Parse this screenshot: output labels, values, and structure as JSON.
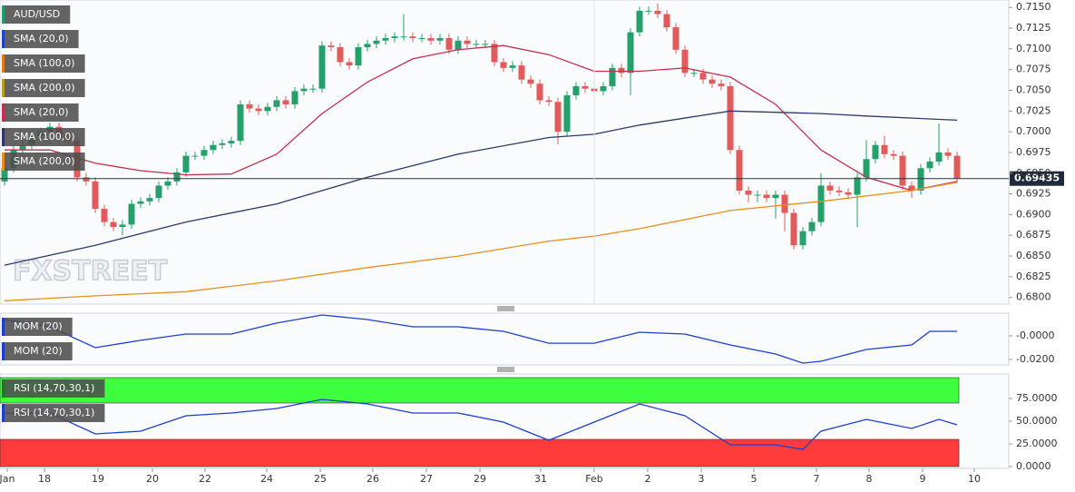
{
  "chart_data": [
    {
      "type": "candlestick",
      "title": "AUD/USD",
      "xlim": [
        -0.5,
        110.7
      ],
      "ylim": [
        0.6792,
        0.7159
      ],
      "yticks": [
        {
          "value": 0.68,
          "label": "0.6800"
        },
        {
          "value": 0.6825,
          "label": "0.6825"
        },
        {
          "value": 0.685,
          "label": "0.6850"
        },
        {
          "value": 0.6875,
          "label": "0.6875"
        },
        {
          "value": 0.69,
          "label": "0.6900"
        },
        {
          "value": 0.6925,
          "label": "0.6925"
        },
        {
          "value": 0.695,
          "label": "0.6950"
        },
        {
          "value": 0.6975,
          "label": "0.6975"
        },
        {
          "value": 0.7,
          "label": "0.7000"
        },
        {
          "value": 0.7025,
          "label": "0.7025"
        },
        {
          "value": 0.705,
          "label": "0.7050"
        },
        {
          "value": 0.7075,
          "label": "0.7075"
        },
        {
          "value": 0.71,
          "label": "0.7100"
        },
        {
          "value": 0.7125,
          "label": "0.7125"
        },
        {
          "value": 0.715,
          "label": "0.7150"
        }
      ],
      "last_price": 0.69435,
      "watermark": "FXSTREET",
      "up_color": "#26a06b",
      "down_color": "#e05b5b",
      "legend": [
        {
          "text": "AUD/USD",
          "color": "#26a06b"
        },
        {
          "text": "SMA (20,0)",
          "color": "#2244cc"
        },
        {
          "text": "SMA (100,0)",
          "color": "#e07b1c"
        },
        {
          "text": "SMA (200,0)",
          "color": "#b8a21c"
        },
        {
          "text": "SMA (20,0)",
          "color": "#c2304f"
        },
        {
          "text": "SMA (100,0)",
          "color": "#2b3a6b"
        },
        {
          "text": "SMA (200,0)",
          "color": "#e8901c"
        }
      ],
      "open": [
        0.694,
        0.6956,
        0.6978,
        0.6984,
        0.6995,
        0.7,
        0.7006,
        0.6995,
        0.6989,
        0.6945,
        0.694,
        0.6907,
        0.6891,
        0.6885,
        0.6888,
        0.6913,
        0.6916,
        0.692,
        0.6935,
        0.694,
        0.6951,
        0.6971,
        0.6971,
        0.6978,
        0.6984,
        0.6986,
        0.6989,
        0.7033,
        0.7028,
        0.7025,
        0.703,
        0.7038,
        0.7033,
        0.7049,
        0.7052,
        0.7052,
        0.7104,
        0.7102,
        0.7084,
        0.708,
        0.7102,
        0.7106,
        0.711,
        0.7113,
        0.7115,
        0.7115,
        0.7113,
        0.7113,
        0.711,
        0.7113,
        0.7099,
        0.711,
        0.7106,
        0.7106,
        0.7106,
        0.7084,
        0.7077,
        0.708,
        0.7063,
        0.7058,
        0.7038,
        0.7036,
        0.7,
        0.7044,
        0.7055,
        0.7052,
        0.7049,
        0.7055,
        0.7077,
        0.7071,
        0.712,
        0.7146,
        0.7146,
        0.7142,
        0.7126,
        0.7099,
        0.7071,
        0.7071,
        0.7063,
        0.7058,
        0.7055,
        0.6978,
        0.6929,
        0.6924,
        0.6924,
        0.692,
        0.6924,
        0.6902,
        0.6863,
        0.688,
        0.6891,
        0.6935,
        0.6929,
        0.6927,
        0.6924,
        0.6945,
        0.6967,
        0.6984,
        0.6973,
        0.6971,
        0.6935,
        0.6929,
        0.6956,
        0.6964,
        0.6975,
        0.6971
      ],
      "high": [
        0.6961,
        0.6983,
        0.6989,
        0.7,
        0.7005,
        0.7011,
        0.7011,
        0.7,
        0.6994,
        0.695,
        0.6945,
        0.6912,
        0.6896,
        0.6893,
        0.6918,
        0.6921,
        0.6925,
        0.694,
        0.6945,
        0.6956,
        0.6976,
        0.6976,
        0.6983,
        0.6989,
        0.6991,
        0.6994,
        0.7038,
        0.7038,
        0.7033,
        0.7035,
        0.7043,
        0.7043,
        0.7054,
        0.7057,
        0.7057,
        0.7109,
        0.7109,
        0.7107,
        0.7089,
        0.7107,
        0.7111,
        0.7115,
        0.7118,
        0.712,
        0.7142,
        0.712,
        0.7118,
        0.7118,
        0.7118,
        0.7118,
        0.7115,
        0.7115,
        0.7111,
        0.7111,
        0.7111,
        0.7089,
        0.7085,
        0.7085,
        0.7068,
        0.7063,
        0.7043,
        0.7041,
        0.7049,
        0.706,
        0.706,
        0.7057,
        0.706,
        0.7082,
        0.7082,
        0.7125,
        0.7151,
        0.7151,
        0.7155,
        0.7147,
        0.7131,
        0.7104,
        0.7076,
        0.7076,
        0.7068,
        0.7063,
        0.706,
        0.6983,
        0.6934,
        0.6929,
        0.6929,
        0.6929,
        0.6929,
        0.6907,
        0.6885,
        0.6896,
        0.695,
        0.694,
        0.6934,
        0.6932,
        0.695,
        0.699,
        0.6989,
        0.6995,
        0.6978,
        0.6976,
        0.694,
        0.6961,
        0.6969,
        0.701,
        0.698,
        0.6976
      ],
      "low": [
        0.6935,
        0.6951,
        0.6973,
        0.6979,
        0.699,
        0.6995,
        0.699,
        0.6984,
        0.694,
        0.6935,
        0.6902,
        0.6886,
        0.688,
        0.6875,
        0.6883,
        0.6908,
        0.6911,
        0.6915,
        0.693,
        0.6935,
        0.6946,
        0.6966,
        0.6966,
        0.6973,
        0.6979,
        0.6981,
        0.6984,
        0.7023,
        0.702,
        0.702,
        0.7025,
        0.7028,
        0.7028,
        0.7044,
        0.7047,
        0.7047,
        0.7097,
        0.7079,
        0.7075,
        0.7075,
        0.7097,
        0.7101,
        0.7105,
        0.7108,
        0.711,
        0.7108,
        0.7108,
        0.7105,
        0.7105,
        0.7094,
        0.7094,
        0.7101,
        0.7101,
        0.7101,
        0.7079,
        0.7072,
        0.7072,
        0.7058,
        0.7053,
        0.7033,
        0.7031,
        0.6985,
        0.6995,
        0.7039,
        0.7047,
        0.7044,
        0.7044,
        0.705,
        0.7066,
        0.7044,
        0.7115,
        0.7141,
        0.7137,
        0.7121,
        0.7094,
        0.7066,
        0.7066,
        0.7058,
        0.7053,
        0.705,
        0.6973,
        0.6924,
        0.6915,
        0.6915,
        0.6915,
        0.6895,
        0.688,
        0.6858,
        0.6858,
        0.6875,
        0.6886,
        0.6924,
        0.6922,
        0.6919,
        0.6885,
        0.694,
        0.6962,
        0.6968,
        0.6966,
        0.693,
        0.692,
        0.6924,
        0.6951,
        0.6959,
        0.6966,
        0.6938
      ],
      "close": [
        0.6956,
        0.6978,
        0.6984,
        0.6995,
        0.7,
        0.7006,
        0.6995,
        0.6989,
        0.6945,
        0.694,
        0.6907,
        0.6891,
        0.6885,
        0.6888,
        0.6913,
        0.6916,
        0.692,
        0.6935,
        0.694,
        0.6951,
        0.6971,
        0.6971,
        0.6978,
        0.6984,
        0.6986,
        0.6989,
        0.7033,
        0.7028,
        0.7025,
        0.703,
        0.7038,
        0.7033,
        0.7049,
        0.7052,
        0.7052,
        0.7104,
        0.7102,
        0.7084,
        0.708,
        0.7102,
        0.7106,
        0.711,
        0.7113,
        0.7115,
        0.7115,
        0.7113,
        0.7113,
        0.711,
        0.7113,
        0.7099,
        0.711,
        0.7106,
        0.7106,
        0.7106,
        0.7084,
        0.7077,
        0.708,
        0.7063,
        0.7058,
        0.7038,
        0.7036,
        0.7,
        0.7044,
        0.7055,
        0.7052,
        0.7049,
        0.7055,
        0.7077,
        0.7071,
        0.712,
        0.7146,
        0.7146,
        0.7142,
        0.7126,
        0.7099,
        0.7071,
        0.7071,
        0.7063,
        0.7058,
        0.7055,
        0.6978,
        0.6929,
        0.6924,
        0.6924,
        0.692,
        0.6924,
        0.6902,
        0.6863,
        0.688,
        0.6891,
        0.6935,
        0.6929,
        0.6927,
        0.6924,
        0.6945,
        0.6967,
        0.6984,
        0.6973,
        0.6971,
        0.6935,
        0.6929,
        0.6956,
        0.6964,
        0.6975,
        0.6971,
        0.69435
      ],
      "series": [
        {
          "color": "#c2304f",
          "x": [
            0,
            5,
            10,
            15,
            20,
            25,
            30,
            35,
            40,
            45,
            50,
            55,
            60,
            65,
            70,
            75,
            80,
            85,
            90,
            95,
            100,
            105
          ],
          "values": [
            0.6978,
            0.6978,
            0.6962,
            0.6953,
            0.6948,
            0.6949,
            0.6973,
            0.7022,
            0.706,
            0.7088,
            0.7099,
            0.7104,
            0.7093,
            0.7073,
            0.7073,
            0.7077,
            0.7066,
            0.7033,
            0.6978,
            0.6945,
            0.6929,
            0.694
          ]
        },
        {
          "color": "#2b3a6b",
          "x": [
            0,
            10,
            20,
            30,
            40,
            50,
            60,
            65,
            70,
            80,
            90,
            95,
            105
          ],
          "values": [
            0.6839,
            0.6863,
            0.6891,
            0.6913,
            0.6945,
            0.6973,
            0.6993,
            0.6997,
            0.7008,
            0.7025,
            0.7022,
            0.7019,
            0.7014
          ]
        },
        {
          "color": "#e8901c",
          "x": [
            0,
            10,
            20,
            30,
            40,
            50,
            60,
            65,
            70,
            80,
            90,
            100,
            105
          ],
          "values": [
            0.6796,
            0.6802,
            0.6807,
            0.682,
            0.6836,
            0.685,
            0.6868,
            0.6874,
            0.6883,
            0.6905,
            0.6916,
            0.6929,
            0.6939
          ]
        }
      ]
    },
    {
      "type": "line",
      "xlim": [
        -0.5,
        110.7
      ],
      "ylim": [
        -0.0246,
        0.0192
      ],
      "yticks": [
        {
          "value": 0,
          "label": "-0.0000"
        },
        {
          "value": -0.02,
          "label": "-0.0200"
        }
      ],
      "legend": [
        {
          "text": "MOM (20)",
          "color": "#1d3fcf"
        },
        {
          "text": "MOM (20)",
          "color": "#1d3fcf"
        }
      ],
      "series": [
        {
          "color": "#1d3fcf",
          "x": [
            0,
            5,
            10,
            15,
            20,
            25,
            30,
            35,
            40,
            45,
            50,
            55,
            60,
            65,
            70,
            75,
            80,
            85,
            88,
            90,
            95,
            100,
            102,
            105
          ],
          "values": [
            0.0138,
            0.0077,
            -0.01,
            -0.0038,
            0.0015,
            0.0015,
            0.0108,
            0.0177,
            0.0138,
            0.0077,
            0.0077,
            0.0038,
            -0.0062,
            -0.0062,
            0.0031,
            0.0015,
            -0.0077,
            -0.0154,
            -0.0231,
            -0.0215,
            -0.0115,
            -0.0077,
            0.0038,
            0.0038
          ]
        }
      ]
    },
    {
      "type": "line",
      "xlim": [
        -0.5,
        110.7
      ],
      "ylim": [
        -2,
        102
      ],
      "yticks": [
        {
          "value": 0,
          "label": "0.0000"
        },
        {
          "value": 25,
          "label": "25.0000"
        },
        {
          "value": 50,
          "label": "50.0000"
        },
        {
          "value": 75,
          "label": "75.0000"
        }
      ],
      "bands": [
        {
          "from": 70,
          "to": 98,
          "color": "#3dff3d"
        },
        {
          "from": 0,
          "to": 30,
          "color": "#ff3b3b"
        }
      ],
      "legend": [
        {
          "text": "RSI (14,70,30,1)",
          "color": "#1f7a1f"
        },
        {
          "text": "RSI (14,70,30,1)",
          "color": "#1d3fcf"
        }
      ],
      "xticks": [
        {
          "value": 0.3,
          "label": "Jan"
        },
        {
          "value": 4.4,
          "label": "18"
        },
        {
          "value": 10.3,
          "label": "19"
        },
        {
          "value": 16.3,
          "label": "20"
        },
        {
          "value": 22.1,
          "label": "22"
        },
        {
          "value": 28.9,
          "label": "24"
        },
        {
          "value": 34.8,
          "label": "25"
        },
        {
          "value": 40.6,
          "label": "26"
        },
        {
          "value": 46.5,
          "label": "27"
        },
        {
          "value": 52.4,
          "label": "29"
        },
        {
          "value": 59.1,
          "label": "31"
        },
        {
          "value": 65,
          "label": "Feb"
        },
        {
          "value": 70.9,
          "label": "2"
        },
        {
          "value": 76.8,
          "label": "3"
        },
        {
          "value": 82.6,
          "label": "5"
        },
        {
          "value": 89.5,
          "label": "7"
        },
        {
          "value": 95.3,
          "label": "8"
        },
        {
          "value": 101.2,
          "label": "9"
        },
        {
          "value": 106.9,
          "label": "10"
        }
      ],
      "series": [
        {
          "color": "#1d3fcf",
          "x": [
            0,
            5,
            10,
            15,
            20,
            25,
            30,
            35,
            40,
            45,
            50,
            55,
            60,
            65,
            70,
            75,
            80,
            85,
            88,
            90,
            95,
            100,
            103,
            105
          ],
          "values": [
            59,
            59,
            36,
            39,
            56,
            59,
            64,
            74,
            69,
            59,
            59,
            49,
            29,
            49,
            69,
            56,
            24,
            24,
            19,
            39,
            52,
            42,
            52,
            46
          ]
        }
      ]
    }
  ]
}
